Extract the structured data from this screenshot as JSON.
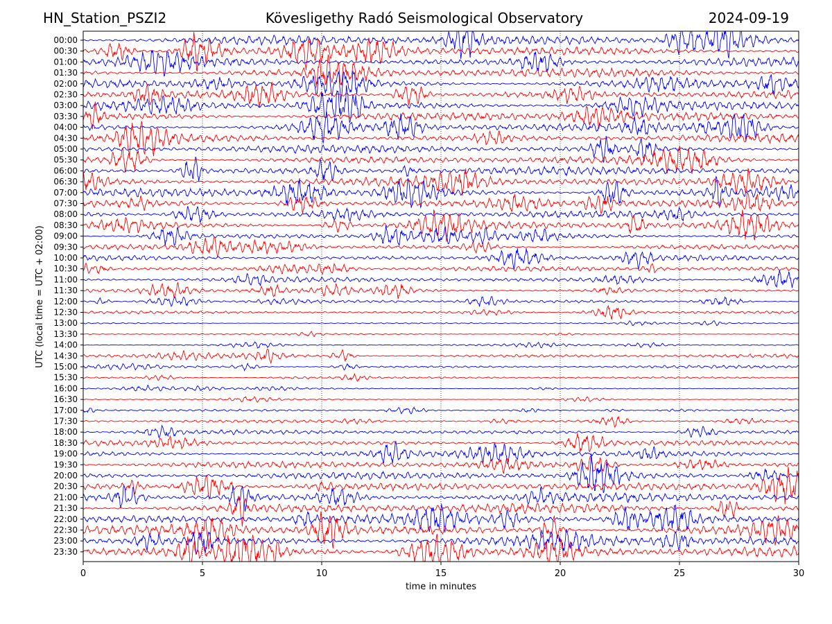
{
  "header": {
    "station": "HN_Station_PSZI2",
    "observatory": "Kövesligethy Radó Seismological Observatory",
    "date": "2024-09-19"
  },
  "chart_data": {
    "type": "line",
    "xlabel": "time in minutes",
    "ylabel": "UTC (local time = UTC + 02:00)",
    "xlim": [
      0,
      30
    ],
    "x_ticks": [
      0,
      5,
      10,
      15,
      20,
      25,
      30
    ],
    "grid": "vertical dotted lines at 5-minute intervals",
    "row_labels": [
      "00:00",
      "00:30",
      "01:00",
      "01:30",
      "02:00",
      "02:30",
      "03:00",
      "03:30",
      "04:00",
      "04:30",
      "05:00",
      "05:30",
      "06:00",
      "06:30",
      "07:00",
      "07:30",
      "08:00",
      "08:30",
      "09:00",
      "09:30",
      "10:00",
      "10:30",
      "11:00",
      "11:30",
      "12:00",
      "12:30",
      "13:00",
      "13:30",
      "14:00",
      "14:30",
      "15:00",
      "15:30",
      "16:00",
      "16:30",
      "17:00",
      "17:30",
      "18:00",
      "18:30",
      "19:00",
      "19:30",
      "20:00",
      "20:30",
      "21:00",
      "21:30",
      "22:00",
      "22:30",
      "23:00",
      "23:30"
    ],
    "trace_colors": [
      "#0000ff",
      "#ff0000"
    ],
    "relative_amplitude": [
      1.0,
      0.95,
      0.9,
      0.9,
      0.85,
      0.85,
      0.9,
      0.9,
      0.85,
      0.85,
      0.8,
      0.8,
      0.85,
      0.85,
      0.85,
      0.75,
      0.7,
      0.75,
      0.55,
      0.5,
      0.55,
      0.5,
      0.5,
      0.45,
      0.3,
      0.3,
      0.15,
      0.15,
      0.2,
      0.4,
      0.3,
      0.2,
      0.15,
      0.15,
      0.2,
      0.3,
      0.45,
      0.55,
      0.65,
      0.7,
      0.75,
      0.8,
      0.9,
      1.0,
      1.05,
      1.05,
      1.1,
      1.1
    ]
  }
}
